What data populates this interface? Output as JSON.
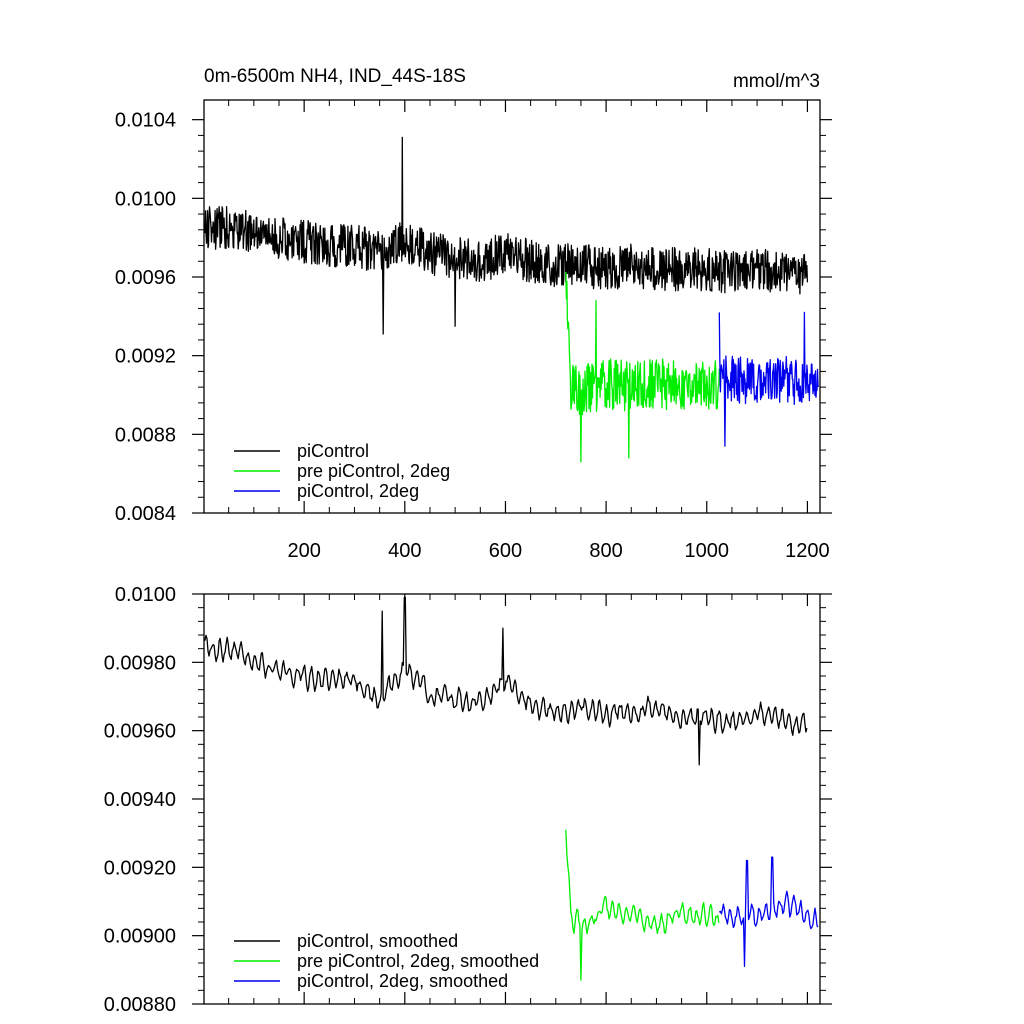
{
  "chart_data": [
    {
      "type": "line",
      "title": "0m-6500m NH4, IND_44S-18S",
      "units": "mmol/m^3",
      "xlabel": "",
      "ylabel": "",
      "xlim": [
        1,
        1225
      ],
      "ylim": [
        0.0084,
        0.0105
      ],
      "xticks": [
        200,
        400,
        600,
        800,
        1000,
        1200
      ],
      "xtick_labels": [
        "200",
        "400",
        "600",
        "800",
        "1000",
        "1200"
      ],
      "yticks": [
        0.0084,
        0.0088,
        0.0092,
        0.0096,
        0.01,
        0.0104
      ],
      "ytick_labels": [
        "0.0084",
        "0.0088",
        "0.0092",
        "0.0096",
        "0.0100",
        "0.0104"
      ],
      "grid": false,
      "legend": "bottom-left",
      "series": [
        {
          "name": "piControl",
          "color": "#000000",
          "x": [
            1,
            50,
            100,
            150,
            200,
            250,
            300,
            350,
            400,
            450,
            500,
            550,
            600,
            650,
            700,
            750,
            800,
            850,
            900,
            950,
            1000,
            1050,
            1100,
            1150,
            1200
          ],
          "y": [
            0.00985,
            0.00985,
            0.00982,
            0.0098,
            0.00978,
            0.00976,
            0.00976,
            0.00972,
            0.00978,
            0.00972,
            0.0097,
            0.00968,
            0.00972,
            0.00968,
            0.00966,
            0.00966,
            0.00964,
            0.00966,
            0.00964,
            0.00964,
            0.00964,
            0.00962,
            0.00964,
            0.00962,
            0.00962
          ],
          "noise": 0.00011,
          "extremes": [
            {
              "x": 395,
              "y": 0.01031
            },
            {
              "x": 357,
              "y": 0.00931
            },
            {
              "x": 500,
              "y": 0.00935
            }
          ]
        },
        {
          "name": "pre piControl, 2deg",
          "color": "#00ee00",
          "x": [
            720,
            730,
            750,
            800,
            850,
            900,
            950,
            1000,
            1025
          ],
          "y": [
            0.00962,
            0.00905,
            0.00902,
            0.00906,
            0.00904,
            0.00906,
            0.00904,
            0.00906,
            0.00905
          ],
          "noise": 0.00013,
          "extremes": [
            {
              "x": 750,
              "y": 0.00866
            },
            {
              "x": 845,
              "y": 0.00868
            },
            {
              "x": 780,
              "y": 0.00948
            }
          ]
        },
        {
          "name": "piControl, 2deg",
          "color": "#0000ee",
          "x": [
            1025,
            1050,
            1100,
            1150,
            1200,
            1222
          ],
          "y": [
            0.00908,
            0.00908,
            0.00906,
            0.00908,
            0.00906,
            0.00905
          ],
          "noise": 0.00012,
          "extremes": [
            {
              "x": 1025,
              "y": 0.00942
            },
            {
              "x": 1194,
              "y": 0.00942
            },
            {
              "x": 1036,
              "y": 0.00874
            }
          ]
        }
      ]
    },
    {
      "type": "line",
      "title": "",
      "xlabel": "",
      "ylabel": "",
      "xlim": [
        1,
        1225
      ],
      "ylim": [
        0.0088,
        0.01
      ],
      "xticks": [
        200,
        400,
        600,
        800,
        1000,
        1200
      ],
      "yticks": [
        0.0088,
        0.009,
        0.0092,
        0.0094,
        0.0096,
        0.0098,
        0.01
      ],
      "ytick_labels": [
        "0.00880",
        "0.00900",
        "0.00920",
        "0.00940",
        "0.00960",
        "0.00980",
        "0.0100"
      ],
      "grid": false,
      "legend": "bottom-left",
      "series": [
        {
          "name": "piControl, smoothed",
          "color": "#000000",
          "x": [
            1,
            50,
            100,
            150,
            200,
            250,
            300,
            350,
            400,
            450,
            500,
            550,
            600,
            650,
            700,
            750,
            800,
            850,
            900,
            950,
            1000,
            1050,
            1100,
            1150,
            1200
          ],
          "y": [
            0.00985,
            0.00984,
            0.00981,
            0.00977,
            0.00976,
            0.00974,
            0.00975,
            0.00969,
            0.00978,
            0.0097,
            0.00969,
            0.00969,
            0.00974,
            0.00968,
            0.00965,
            0.00967,
            0.00965,
            0.00966,
            0.00966,
            0.00964,
            0.00964,
            0.00962,
            0.00965,
            0.00963,
            0.00962
          ],
          "noise": 5e-05,
          "extremes": [
            {
              "x": 400,
              "y": 0.00999
            },
            {
              "x": 355,
              "y": 0.00995
            },
            {
              "x": 595,
              "y": 0.0099
            },
            {
              "x": 985,
              "y": 0.0095
            }
          ]
        },
        {
          "name": "pre piControl, 2deg, smoothed",
          "color": "#00ee00",
          "x": [
            720,
            730,
            750,
            800,
            850,
            900,
            950,
            1000,
            1025
          ],
          "y": [
            0.0093,
            0.00905,
            0.00903,
            0.00908,
            0.00906,
            0.00903,
            0.00907,
            0.00905,
            0.00904
          ],
          "noise": 5e-05,
          "extremes": [
            {
              "x": 720,
              "y": 0.00931
            },
            {
              "x": 750,
              "y": 0.00887
            }
          ]
        },
        {
          "name": "piControl, 2deg, smoothed",
          "color": "#0000ee",
          "x": [
            1025,
            1050,
            1100,
            1150,
            1200,
            1222
          ],
          "y": [
            0.00908,
            0.00905,
            0.00906,
            0.00909,
            0.00906,
            0.00904
          ],
          "noise": 5e-05,
          "extremes": [
            {
              "x": 1080,
              "y": 0.00922
            },
            {
              "x": 1130,
              "y": 0.00923
            },
            {
              "x": 1075,
              "y": 0.00891
            }
          ]
        }
      ]
    }
  ]
}
